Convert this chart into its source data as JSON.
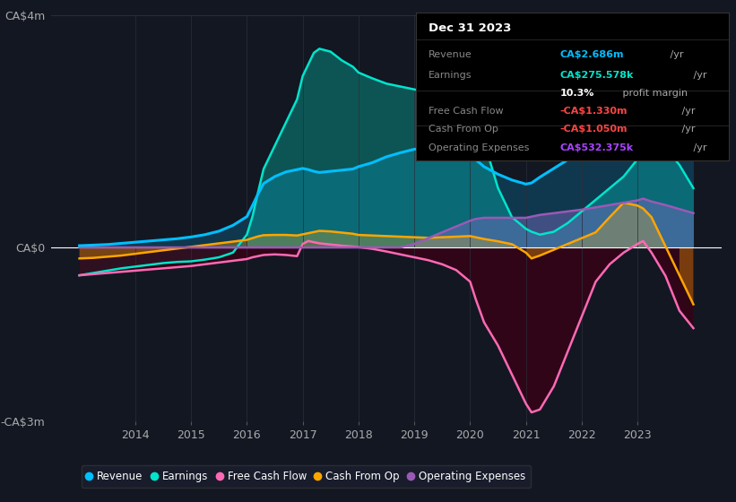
{
  "bg_color": "#131722",
  "grid_color": "#2a2e39",
  "zero_line_color": "#ffffff",
  "ylim": [
    -3000000,
    4000000
  ],
  "xlim_start": 2012.5,
  "xlim_end": 2024.5,
  "xticks": [
    2014,
    2015,
    2016,
    2017,
    2018,
    2019,
    2020,
    2021,
    2022,
    2023
  ],
  "ytick_labels": [
    "-CA$3m",
    "CA$0",
    "CA$4m"
  ],
  "legend_items": [
    {
      "label": "Revenue",
      "color": "#00bfff"
    },
    {
      "label": "Earnings",
      "color": "#00e5cc"
    },
    {
      "label": "Free Cash Flow",
      "color": "#ff69b4"
    },
    {
      "label": "Cash From Op",
      "color": "#ffa500"
    },
    {
      "label": "Operating Expenses",
      "color": "#9b59b6"
    }
  ],
  "info_box": {
    "date": "Dec 31 2023",
    "rows": [
      {
        "label": "Revenue",
        "value": "CA$2.686m",
        "suffix": " /yr",
        "value_color": "#00bfff"
      },
      {
        "label": "Earnings",
        "value": "CA$275.578k",
        "suffix": " /yr",
        "value_color": "#00e5cc"
      },
      {
        "label": "",
        "value": "10.3%",
        "suffix": " profit margin",
        "value_color": "#ffffff",
        "suffix_color": "#aaaaaa"
      },
      {
        "label": "Free Cash Flow",
        "value": "-CA$1.330m",
        "suffix": " /yr",
        "value_color": "#ff4444"
      },
      {
        "label": "Cash From Op",
        "value": "-CA$1.050m",
        "suffix": " /yr",
        "value_color": "#ff4444"
      },
      {
        "label": "Operating Expenses",
        "value": "CA$532.375k",
        "suffix": " /yr",
        "value_color": "#aa44ff"
      }
    ]
  },
  "revenue_color": "#00bfff",
  "earnings_color": "#00e5cc",
  "fcf_color": "#ff69b4",
  "cashop_color": "#ffa500",
  "opex_color": "#9b59b6",
  "dark_fill_color": "#3a0010",
  "earnings_fill_color": "#0a4a4a"
}
